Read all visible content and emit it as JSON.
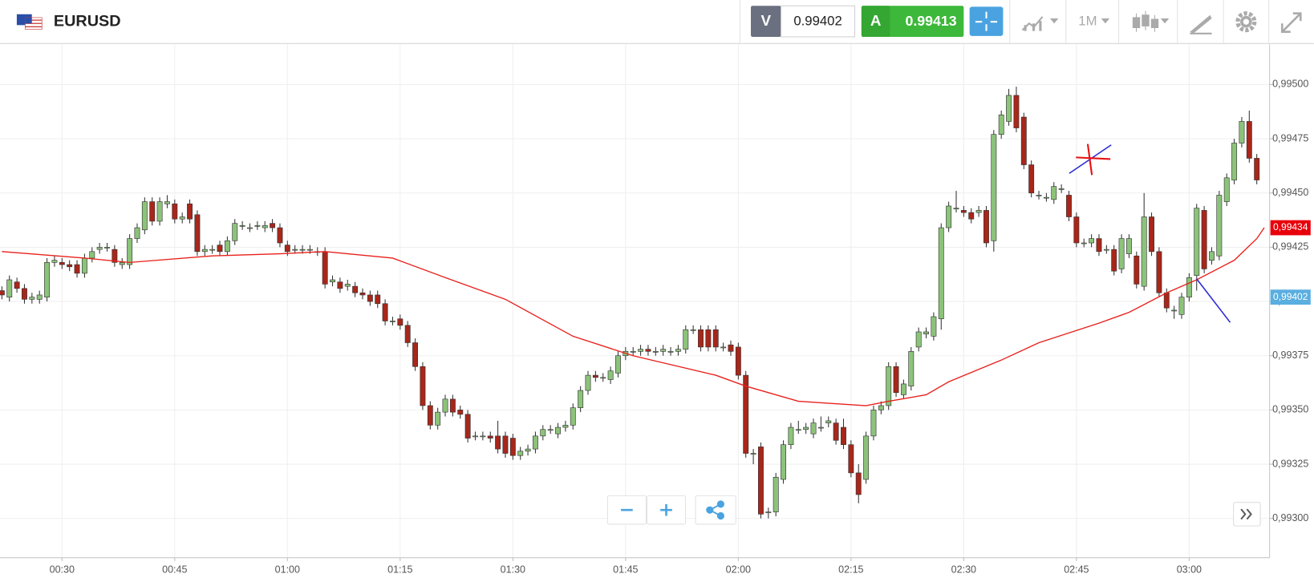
{
  "header": {
    "symbol": "EURUSD",
    "sell_label": "V",
    "sell_price": "0.99402",
    "buy_label": "A",
    "buy_price": "0.99413",
    "timeframe": "1M"
  },
  "chart_data": {
    "type": "candlestick",
    "up_color": "#8cc37a",
    "down_color": "#a8261a",
    "grid": true,
    "xlim": [
      21.75,
      190.7
    ],
    "ylim": [
      0.992819,
      0.995185
    ],
    "xticks": [
      {
        "value": 30,
        "label": "00:30"
      },
      {
        "value": 45,
        "label": "00:45"
      },
      {
        "value": 60,
        "label": "01:00"
      },
      {
        "value": 75,
        "label": "01:15"
      },
      {
        "value": 90,
        "label": "01:30"
      },
      {
        "value": 105,
        "label": "01:45"
      },
      {
        "value": 120,
        "label": "02:00"
      },
      {
        "value": 135,
        "label": "02:15"
      },
      {
        "value": 150,
        "label": "02:30"
      },
      {
        "value": 165,
        "label": "02:45"
      },
      {
        "value": 180,
        "label": "03:00"
      }
    ],
    "yticks": [
      {
        "value": 0.993,
        "label": "0,99300"
      },
      {
        "value": 0.99325,
        "label": "0,99325"
      },
      {
        "value": 0.9935,
        "label": "0,99350"
      },
      {
        "value": 0.99375,
        "label": "0,99375"
      },
      {
        "value": 0.994,
        "label": "0,99400"
      },
      {
        "value": 0.99425,
        "label": "0,99425"
      },
      {
        "value": 0.9945,
        "label": "0,99450"
      },
      {
        "value": 0.99475,
        "label": "0,99475"
      },
      {
        "value": 0.995,
        "label": "0,99500"
      }
    ],
    "x": [
      22,
      23,
      24,
      25,
      26,
      27,
      28,
      29,
      30,
      31,
      32,
      33,
      34,
      35,
      36,
      37,
      38,
      39,
      40,
      41,
      42,
      43,
      44,
      45,
      46,
      47,
      48,
      49,
      50,
      51,
      52,
      53,
      54,
      55,
      56,
      57,
      58,
      59,
      60,
      61,
      62,
      63,
      64,
      65,
      66,
      67,
      68,
      69,
      70,
      71,
      72,
      73,
      74,
      75,
      76,
      77,
      78,
      79,
      80,
      81,
      82,
      83,
      84,
      85,
      86,
      87,
      88,
      89,
      90,
      91,
      92,
      93,
      94,
      95,
      96,
      97,
      98,
      99,
      100,
      101,
      102,
      103,
      104,
      105,
      106,
      107,
      108,
      109,
      110,
      111,
      112,
      113,
      114,
      115,
      116,
      117,
      118,
      119,
      120,
      121,
      122,
      123,
      124,
      125,
      126,
      127,
      128,
      129,
      130,
      131,
      132,
      133,
      134,
      135,
      136,
      137,
      138,
      139,
      140,
      141,
      142,
      143,
      144,
      145,
      146,
      147,
      148,
      149,
      150,
      151,
      152,
      153,
      154,
      155,
      156,
      157,
      158,
      159,
      160,
      161,
      162,
      163,
      164,
      165,
      166,
      167,
      168,
      169,
      170,
      171,
      172,
      173,
      174,
      175,
      176,
      177,
      178,
      179,
      180,
      181,
      182,
      183,
      184,
      185,
      186,
      187,
      188,
      189
    ],
    "open": [
      0.99405,
      0.99402,
      0.99409,
      0.99406,
      0.99401,
      0.99401,
      0.99402,
      0.99418,
      0.99418,
      0.99417,
      0.99417,
      0.99413,
      0.9942,
      0.99424,
      0.99425,
      0.99424,
      0.99417,
      0.99417,
      0.99429,
      0.99433,
      0.99446,
      0.99437,
      0.99445,
      0.99445,
      0.99438,
      0.99445,
      0.9944,
      0.99423,
      0.99424,
      0.99426,
      0.99423,
      0.99428,
      0.99435,
      0.99434,
      0.99435,
      0.99434,
      0.99436,
      0.99434,
      0.99426,
      0.99424,
      0.99424,
      0.99424,
      0.99423,
      0.99423,
      0.99409,
      0.99409,
      0.99407,
      0.99407,
      0.99404,
      0.99403,
      0.99403,
      0.99399,
      0.99391,
      0.99392,
      0.99389,
      0.99381,
      0.9937,
      0.99352,
      0.99343,
      0.99349,
      0.99355,
      0.9935,
      0.99348,
      0.99338,
      0.99338,
      0.99338,
      0.99338,
      0.99338,
      0.99337,
      0.99329,
      0.99331,
      0.99332,
      0.99338,
      0.99341,
      0.99339,
      0.99342,
      0.99343,
      0.99351,
      0.99359,
      0.99366,
      0.99365,
      0.99364,
      0.99367,
      0.99375,
      0.99377,
      0.99377,
      0.99378,
      0.99377,
      0.99377,
      0.99377,
      0.99377,
      0.99378,
      0.99387,
      0.99387,
      0.99387,
      0.99387,
      0.99379,
      0.9938,
      0.99379,
      0.99366,
      0.9933,
      0.99333,
      0.99303,
      0.99303,
      0.99318,
      0.99334,
      0.99341,
      0.99341,
      0.99339,
      0.99342,
      0.99344,
      0.99344,
      0.99342,
      0.99334,
      0.99321,
      0.99318,
      0.99338,
      0.9935,
      0.99352,
      0.9937,
      0.99357,
      0.99361,
      0.99379,
      0.99385,
      0.99384,
      0.99392,
      0.99434,
      0.99443,
      0.99442,
      0.99441,
      0.99441,
      0.99442,
      0.99428,
      0.99477,
      0.99483,
      0.99495,
      0.99485,
      0.99463,
      0.99449,
      0.99448,
      0.99447,
      0.99452,
      0.99449,
      0.99439,
      0.99427,
      0.99427,
      0.99429,
      0.99424,
      0.99424,
      0.99415,
      0.99422,
      0.99421,
      0.99407,
      0.99439,
      0.99423,
      0.99404,
      0.99396,
      0.99394,
      0.99402,
      0.99412,
      0.99442,
      0.99419,
      0.99421,
      0.99446,
      0.99456,
      0.99473,
      0.99483,
      0.99466
    ],
    "high": [
      0.99407,
      0.99412,
      0.99411,
      0.99408,
      0.99404,
      0.99405,
      0.9942,
      0.99421,
      0.9942,
      0.99419,
      0.99419,
      0.99422,
      0.99425,
      0.99427,
      0.99427,
      0.99426,
      0.9942,
      0.99431,
      0.99436,
      0.99448,
      0.99448,
      0.99448,
      0.99449,
      0.99447,
      0.99441,
      0.99447,
      0.99442,
      0.99426,
      0.99426,
      0.99428,
      0.9943,
      0.99438,
      0.99437,
      0.99436,
      0.99437,
      0.99437,
      0.99438,
      0.99436,
      0.99428,
      0.99426,
      0.99426,
      0.99426,
      0.99425,
      0.99425,
      0.99412,
      0.99411,
      0.9941,
      0.99409,
      0.99406,
      0.99405,
      0.99405,
      0.99401,
      0.99393,
      0.99394,
      0.99391,
      0.99383,
      0.99372,
      0.99354,
      0.99351,
      0.99357,
      0.99357,
      0.99352,
      0.9935,
      0.9934,
      0.9934,
      0.9934,
      0.99345,
      0.9934,
      0.99339,
      0.99333,
      0.99334,
      0.9934,
      0.99343,
      0.99343,
      0.99344,
      0.99345,
      0.99353,
      0.99361,
      0.99368,
      0.99368,
      0.99367,
      0.9937,
      0.99377,
      0.99379,
      0.99379,
      0.9938,
      0.9938,
      0.99379,
      0.9938,
      0.99379,
      0.9938,
      0.99389,
      0.99389,
      0.99389,
      0.99389,
      0.99389,
      0.99381,
      0.99382,
      0.99381,
      0.99368,
      0.99332,
      0.99335,
      0.99305,
      0.99321,
      0.99336,
      0.99344,
      0.99345,
      0.99344,
      0.99346,
      0.99347,
      0.99347,
      0.99346,
      0.99346,
      0.99336,
      0.99325,
      0.9934,
      0.99352,
      0.99354,
      0.99372,
      0.99372,
      0.99364,
      0.99379,
      0.99388,
      0.99388,
      0.99395,
      0.99436,
      0.99446,
      0.99451,
      0.99444,
      0.99443,
      0.99444,
      0.99444,
      0.99479,
      0.99488,
      0.99498,
      0.99499,
      0.99487,
      0.99465,
      0.99451,
      0.9945,
      0.99455,
      0.99454,
      0.99451,
      0.99441,
      0.99429,
      0.99431,
      0.99431,
      0.99426,
      0.99426,
      0.99431,
      0.99431,
      0.99423,
      0.9945,
      0.99441,
      0.99425,
      0.99406,
      0.99398,
      0.99404,
      0.99413,
      0.99445,
      0.99444,
      0.99425,
      0.99451,
      0.99459,
      0.99475,
      0.99485,
      0.99488,
      0.99468
    ],
    "low": [
      0.99401,
      0.994,
      0.99404,
      0.99399,
      0.99399,
      0.99399,
      0.994,
      0.99416,
      0.99415,
      0.99414,
      0.99411,
      0.99411,
      0.99418,
      0.99422,
      0.99423,
      0.99416,
      0.99415,
      0.99415,
      0.99427,
      0.99431,
      0.99435,
      0.99435,
      0.99443,
      0.99436,
      0.99436,
      0.99436,
      0.99421,
      0.99421,
      0.99422,
      0.99421,
      0.99421,
      0.99426,
      0.99433,
      0.99432,
      0.99433,
      0.99432,
      0.99432,
      0.99425,
      0.99421,
      0.99422,
      0.99422,
      0.99422,
      0.99421,
      0.99406,
      0.99407,
      0.99404,
      0.99405,
      0.99402,
      0.99401,
      0.99398,
      0.99397,
      0.99389,
      0.99389,
      0.99387,
      0.99379,
      0.99368,
      0.9935,
      0.99341,
      0.99341,
      0.99347,
      0.99347,
      0.99346,
      0.99335,
      0.99336,
      0.99336,
      0.99335,
      0.9933,
      0.99328,
      0.99327,
      0.99327,
      0.99329,
      0.9933,
      0.99336,
      0.99339,
      0.99337,
      0.9934,
      0.99341,
      0.99349,
      0.99357,
      0.99363,
      0.99363,
      0.99362,
      0.99365,
      0.99373,
      0.99375,
      0.99375,
      0.99375,
      0.99375,
      0.99375,
      0.99375,
      0.99375,
      0.99376,
      0.99385,
      0.99377,
      0.99377,
      0.99377,
      0.99377,
      0.99375,
      0.99364,
      0.99328,
      0.99325,
      0.993,
      0.993,
      0.99301,
      0.99316,
      0.99332,
      0.99339,
      0.99339,
      0.99337,
      0.9934,
      0.99342,
      0.99334,
      0.99332,
      0.99319,
      0.99307,
      0.99316,
      0.99336,
      0.99348,
      0.9935,
      0.99356,
      0.99355,
      0.99359,
      0.99377,
      0.99383,
      0.99382,
      0.99387,
      0.99432,
      0.99441,
      0.99439,
      0.99436,
      0.99439,
      0.99425,
      0.99423,
      0.99475,
      0.99481,
      0.99478,
      0.99461,
      0.99448,
      0.99447,
      0.99446,
      0.99445,
      0.9945,
      0.99437,
      0.99425,
      0.99425,
      0.99425,
      0.99421,
      0.99422,
      0.99412,
      0.99413,
      0.9942,
      0.99406,
      0.99405,
      0.99421,
      0.99402,
      0.99395,
      0.99392,
      0.99392,
      0.994,
      0.99405,
      0.99413,
      0.99417,
      0.99419,
      0.99444,
      0.99454,
      0.99471,
      0.99464,
      0.99454
    ],
    "close": [
      0.99403,
      0.9941,
      0.99406,
      0.99401,
      0.99402,
      0.99403,
      0.99418,
      0.99419,
      0.99417,
      0.99416,
      0.99413,
      0.9942,
      0.99423,
      0.99425,
      0.99425,
      0.99418,
      0.99418,
      0.99429,
      0.99434,
      0.99446,
      0.99437,
      0.99446,
      0.99446,
      0.99438,
      0.99439,
      0.99438,
      0.99423,
      0.99424,
      0.99424,
      0.99423,
      0.99428,
      0.99436,
      0.99435,
      0.99434,
      0.99435,
      0.99435,
      0.99434,
      0.99427,
      0.99423,
      0.99424,
      0.99424,
      0.99424,
      0.99423,
      0.99408,
      0.9941,
      0.99406,
      0.99408,
      0.99404,
      0.99403,
      0.994,
      0.99399,
      0.99391,
      0.99391,
      0.99389,
      0.99381,
      0.9937,
      0.99352,
      0.99343,
      0.99349,
      0.99355,
      0.99349,
      0.99348,
      0.99337,
      0.99338,
      0.99338,
      0.99337,
      0.99332,
      0.9933,
      0.99329,
      0.99331,
      0.99332,
      0.99338,
      0.99341,
      0.99341,
      0.99342,
      0.99343,
      0.99351,
      0.99359,
      0.99366,
      0.99365,
      0.99365,
      0.99368,
      0.99375,
      0.99377,
      0.99377,
      0.99378,
      0.99377,
      0.99377,
      0.99378,
      0.99377,
      0.99378,
      0.99387,
      0.99387,
      0.99379,
      0.99379,
      0.99379,
      0.99379,
      0.99377,
      0.99366,
      0.9933,
      0.9933,
      0.99302,
      0.99303,
      0.99319,
      0.99334,
      0.99342,
      0.99341,
      0.99342,
      0.99344,
      0.99342,
      0.99345,
      0.99336,
      0.99334,
      0.99321,
      0.99311,
      0.99338,
      0.9935,
      0.99352,
      0.9937,
      0.99358,
      0.99362,
      0.99377,
      0.99386,
      0.99386,
      0.99393,
      0.99434,
      0.99444,
      0.99443,
      0.99441,
      0.99438,
      0.99442,
      0.99427,
      0.99477,
      0.99486,
      0.99495,
      0.9948,
      0.99463,
      0.9945,
      0.99449,
      0.99448,
      0.99453,
      0.99452,
      0.99439,
      0.99427,
      0.99427,
      0.99429,
      0.99423,
      0.99424,
      0.99414,
      0.99429,
      0.99429,
      0.99408,
      0.99439,
      0.99423,
      0.99404,
      0.99397,
      0.99396,
      0.99402,
      0.99411,
      0.99443,
      0.99415,
      0.99423,
      0.99449,
      0.99457,
      0.99473,
      0.99483,
      0.99466,
      0.99456
    ],
    "moving_average": {
      "color": "#e8211c",
      "x": [
        22,
        33,
        39,
        50,
        59,
        65,
        74,
        81,
        89,
        98,
        106,
        117,
        121,
        128,
        137,
        140,
        145,
        148,
        155,
        160,
        168,
        172,
        177,
        181,
        186,
        189,
        190
      ],
      "values": [
        0.99423,
        0.9942,
        0.99418,
        0.99421,
        0.99422,
        0.99423,
        0.9942,
        0.99411,
        0.99401,
        0.99384,
        0.99375,
        0.99366,
        0.99361,
        0.99354,
        0.99352,
        0.99354,
        0.99357,
        0.99363,
        0.99373,
        0.99381,
        0.9939,
        0.99395,
        0.99404,
        0.9941,
        0.99419,
        0.99429,
        0.99434
      ]
    },
    "price_tags": [
      {
        "value": 0.99434,
        "label": "0,99434",
        "color": "#e8000b"
      },
      {
        "value": 0.99402,
        "label": "0,99402",
        "color": "#5aaee0"
      }
    ]
  }
}
